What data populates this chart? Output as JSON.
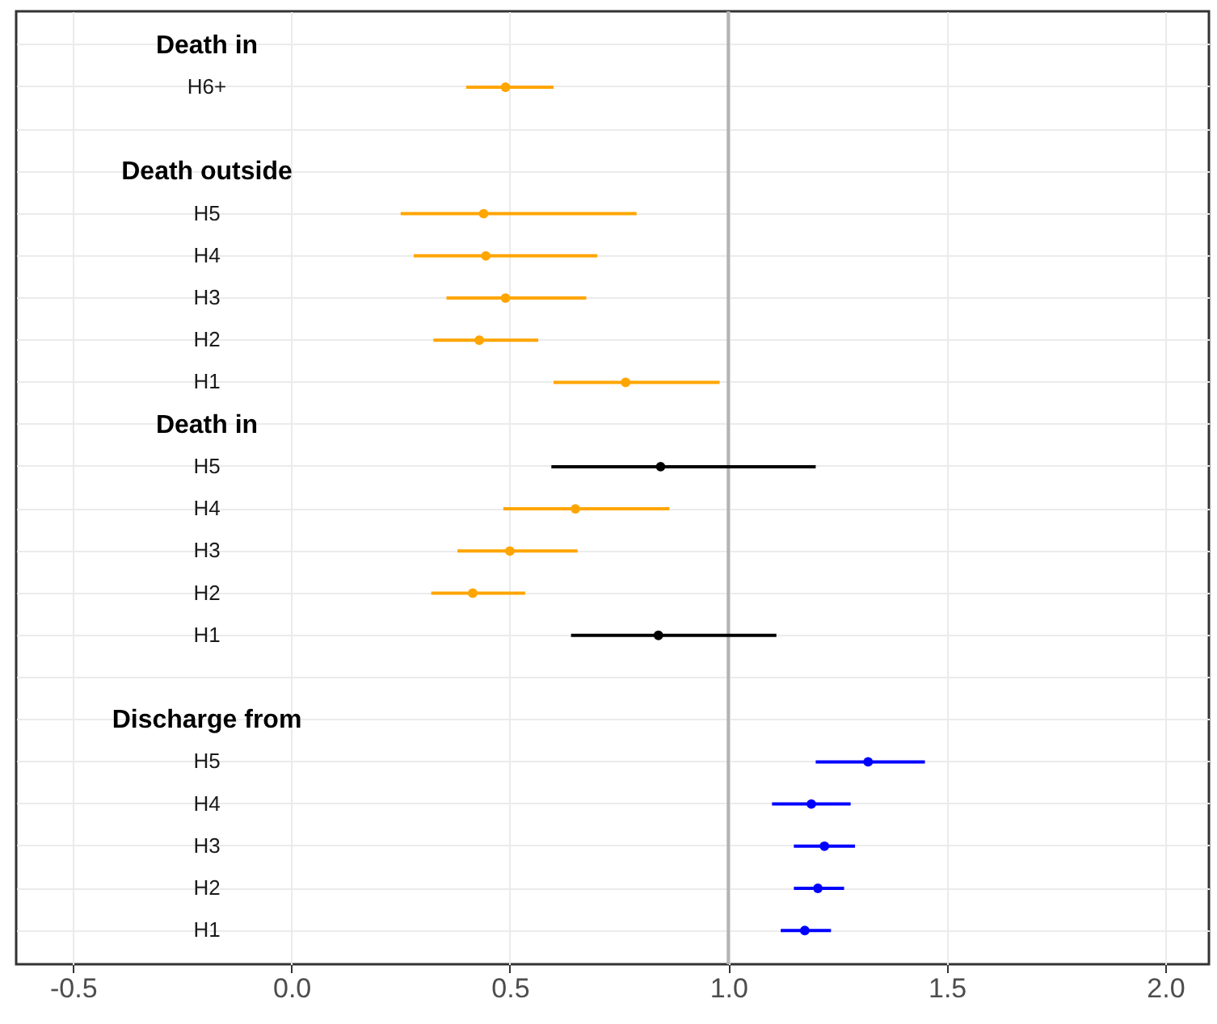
{
  "chart_data": {
    "type": "scatter",
    "orientation": "horizontal",
    "marker": "circle",
    "grid": true,
    "tick_labels": "x",
    "categories": [
      "Death in",
      "H6+",
      null,
      "Death outside",
      "H5",
      "H4",
      "H3",
      "H2",
      "H1",
      "Death in",
      "H5",
      "H4",
      "H3",
      "H2",
      "H1",
      null,
      "Discharge from",
      "H5",
      "H4",
      "H3",
      "H2",
      "H1"
    ],
    "values": [
      null,
      0.49,
      null,
      null,
      0.44,
      0.445,
      0.49,
      0.43,
      0.765,
      null,
      0.845,
      0.65,
      0.5,
      0.415,
      0.84,
      null,
      null,
      1.32,
      1.19,
      1.22,
      1.205,
      1.175
    ],
    "errors": [
      null,
      [
        0.4,
        0.6
      ],
      null,
      null,
      [
        0.25,
        0.79
      ],
      [
        0.28,
        0.7
      ],
      [
        0.355,
        0.675
      ],
      [
        0.325,
        0.565
      ],
      [
        0.6,
        0.98
      ],
      null,
      [
        0.595,
        1.2
      ],
      [
        0.485,
        0.865
      ],
      [
        0.38,
        0.655
      ],
      [
        0.32,
        0.535
      ],
      [
        0.64,
        1.11
      ],
      null,
      null,
      [
        1.2,
        1.45
      ],
      [
        1.1,
        1.28
      ],
      [
        1.15,
        1.29
      ],
      [
        1.15,
        1.265
      ],
      [
        1.12,
        1.235
      ]
    ],
    "colors": [
      null,
      "#ffa500",
      null,
      null,
      "#ffa500",
      "#ffa500",
      "#ffa500",
      "#ffa500",
      "#ffa500",
      null,
      "#000000",
      "#ffa500",
      "#ffa500",
      "#ffa500",
      "#000000",
      null,
      null,
      "#0000ff",
      "#0000ff",
      "#0000ff",
      "#0000ff",
      "#0000ff"
    ],
    "xlim": [
      -0.63,
      2.1
    ],
    "xticks": [
      {
        "value": -0.5,
        "label": "-0.5"
      },
      {
        "value": 0,
        "label": "0.0"
      },
      {
        "value": 0.5,
        "label": "0.5"
      },
      {
        "value": 1,
        "label": "1.0"
      },
      {
        "value": 1.5,
        "label": "1.5"
      },
      {
        "value": 2,
        "label": "2.0"
      }
    ],
    "ref_lines": [
      {
        "axis": "x",
        "value": 1,
        "color": "#b3b3b3"
      }
    ]
  }
}
